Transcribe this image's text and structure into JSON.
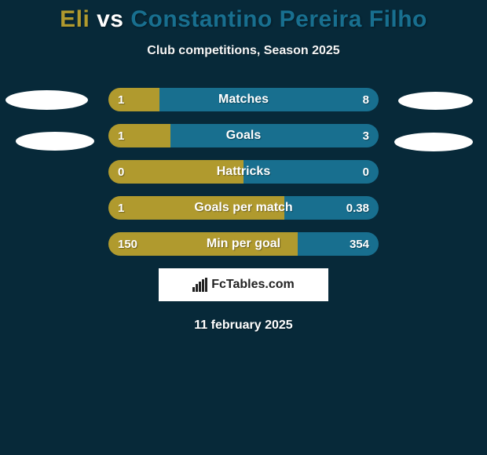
{
  "title": {
    "player_a": "Eli",
    "vs": "vs",
    "player_b": "Constantino Pereira Filho",
    "color_a": "#b09a2e",
    "color_vs": "#ffffff",
    "color_b": "#186f8f"
  },
  "subtitle": "Club competitions, Season 2025",
  "colors": {
    "background": "#072939",
    "bar_left": "#b09a2e",
    "bar_right": "#186f8f",
    "text": "#ffffff"
  },
  "bars": [
    {
      "label": "Matches",
      "left_val": "1",
      "right_val": "8",
      "left_pct": 19,
      "right_pct": 81
    },
    {
      "label": "Goals",
      "left_val": "1",
      "right_val": "3",
      "left_pct": 23,
      "right_pct": 77
    },
    {
      "label": "Hattricks",
      "left_val": "0",
      "right_val": "0",
      "left_pct": 50,
      "right_pct": 50
    },
    {
      "label": "Goals per match",
      "left_val": "1",
      "right_val": "0.38",
      "left_pct": 65,
      "right_pct": 35
    },
    {
      "label": "Min per goal",
      "left_val": "150",
      "right_val": "354",
      "left_pct": 70,
      "right_pct": 30
    }
  ],
  "brand": "FcTables.com",
  "date": "11 february 2025"
}
